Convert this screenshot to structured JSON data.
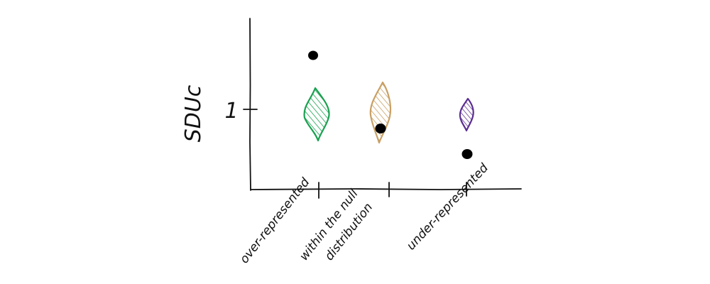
{
  "axes": {
    "y_label": "SDUc",
    "y_tick_label": "1"
  },
  "categories": [
    {
      "label_lines": [
        "over-represented"
      ],
      "color": "#1aa050"
    },
    {
      "label_lines": [
        "within the null",
        "distribution"
      ],
      "color": "#c8a064"
    },
    {
      "label_lines": [
        "under-represented"
      ],
      "color": "#5a2d91"
    }
  ],
  "colors": {
    "axis": "#111111",
    "point": "#000000"
  }
}
